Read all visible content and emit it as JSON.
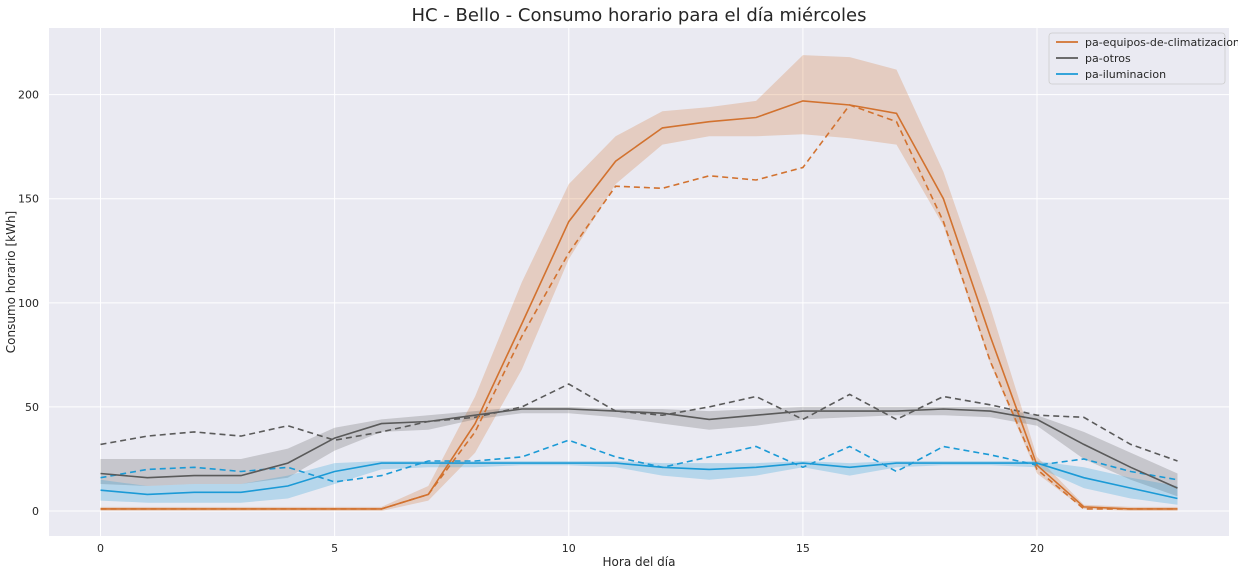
{
  "chart_data": {
    "type": "line",
    "title": "HC - Bello - Consumo horario para el día miércoles",
    "xlabel": "Hora del día",
    "ylabel": "Consumo horario [kWh]",
    "xlim": [
      -1.1,
      24.1
    ],
    "ylim": [
      -12,
      232
    ],
    "xticks": [
      0,
      5,
      10,
      15,
      20
    ],
    "yticks": [
      0,
      50,
      100,
      150,
      200
    ],
    "grid": true,
    "legend_position": "top-right",
    "x": [
      0,
      1,
      2,
      3,
      4,
      5,
      6,
      7,
      8,
      9,
      10,
      11,
      12,
      13,
      14,
      15,
      16,
      17,
      18,
      19,
      20,
      21,
      22,
      23
    ],
    "series": [
      {
        "name": "pa-equipos-de-climatizacion",
        "color": "#d2722f",
        "mean": [
          1,
          1,
          1,
          1,
          1,
          1,
          1,
          8,
          42,
          90,
          139,
          168,
          184,
          187,
          189,
          197,
          195,
          191,
          150,
          84,
          22,
          2,
          1,
          1
        ],
        "band_low": [
          0,
          0,
          0,
          0,
          0,
          0,
          0,
          5,
          28,
          68,
          121,
          157,
          176,
          180,
          180,
          181,
          179,
          176,
          137,
          71,
          18,
          1,
          0,
          0
        ],
        "band_high": [
          2,
          2,
          2,
          2,
          2,
          2,
          2,
          12,
          55,
          110,
          157,
          180,
          192,
          194,
          197,
          219,
          218,
          212,
          163,
          98,
          26,
          3,
          2,
          2
        ],
        "reference": [
          1,
          1,
          1,
          1,
          1,
          1,
          1,
          8,
          38,
          84,
          124,
          156,
          155,
          161,
          159,
          165,
          195,
          187,
          139,
          72,
          20,
          1,
          1,
          1
        ]
      },
      {
        "name": "pa-otros",
        "color": "#5a5a5a",
        "mean": [
          18,
          16,
          17,
          17,
          23,
          35,
          42,
          43,
          46,
          49,
          49,
          48,
          47,
          44,
          46,
          48,
          48,
          48,
          49,
          48,
          44,
          32,
          21,
          11
        ],
        "band_low": [
          13,
          12,
          13,
          13,
          16,
          29,
          38,
          39,
          44,
          47,
          47,
          45,
          42,
          39,
          41,
          44,
          45,
          46,
          46,
          45,
          41,
          25,
          15,
          7
        ],
        "band_high": [
          25,
          25,
          25,
          25,
          30,
          40,
          44,
          46,
          48,
          50,
          50,
          49,
          49,
          48,
          49,
          50,
          50,
          50,
          50,
          50,
          46,
          38,
          28,
          18
        ],
        "reference": [
          32,
          36,
          38,
          36,
          41,
          34,
          38,
          43,
          45,
          50,
          61,
          48,
          46,
          50,
          55,
          44,
          56,
          44,
          55,
          51,
          46,
          45,
          32,
          24
        ]
      },
      {
        "name": "pa-iluminacion",
        "color": "#1b9ad6",
        "mean": [
          10,
          8,
          9,
          9,
          12,
          19,
          23,
          23,
          23,
          23,
          23,
          23,
          21,
          20,
          21,
          23,
          21,
          23,
          23,
          23,
          23,
          16,
          11,
          6
        ],
        "band_low": [
          5,
          4,
          4,
          4,
          6,
          13,
          20,
          21,
          21,
          22,
          22,
          21,
          17,
          15,
          17,
          21,
          17,
          21,
          22,
          22,
          21,
          11,
          6,
          3
        ],
        "band_high": [
          15,
          12,
          13,
          13,
          17,
          23,
          24,
          24,
          24,
          24,
          24,
          24,
          23,
          23,
          23,
          24,
          23,
          24,
          24,
          24,
          24,
          21,
          16,
          12
        ],
        "reference": [
          16,
          20,
          21,
          19,
          21,
          14,
          17,
          24,
          24,
          26,
          34,
          26,
          21,
          26,
          31,
          21,
          31,
          19,
          31,
          27,
          22,
          25,
          19,
          15
        ]
      }
    ]
  }
}
